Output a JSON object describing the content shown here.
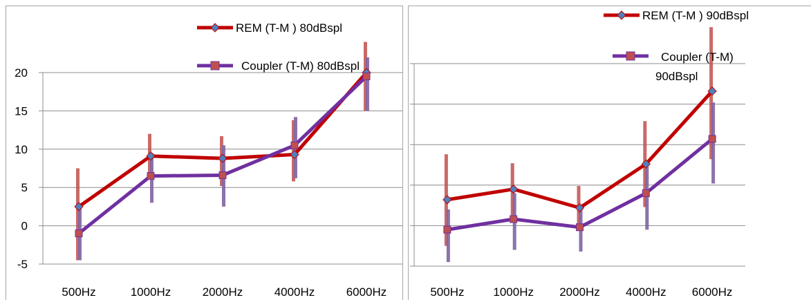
{
  "chart_data": [
    {
      "type": "line",
      "categories": [
        "500Hz",
        "1000Hz",
        "2000Hz",
        "4000Hz",
        "6000Hz"
      ],
      "ylim": [
        -5,
        20
      ],
      "yticks": [
        "20",
        "15",
        "10",
        "5",
        "0",
        "-5"
      ],
      "grid": true,
      "legend_position": "top-right",
      "series": [
        {
          "name": "REM (T-M )  80dBspl",
          "color": "#c00000",
          "marker": "diamond",
          "values": [
            2.5,
            9.1,
            8.8,
            9.3,
            20.0
          ],
          "error_low": [
            -4.5,
            6.0,
            5.2,
            5.8,
            15.0
          ],
          "error_high": [
            7.5,
            12.0,
            11.7,
            13.8,
            24.0
          ]
        },
        {
          "name": "Coupler (T-M) 80dBspl",
          "color": "#7030a0",
          "marker": "square",
          "values": [
            -1.0,
            6.5,
            6.6,
            10.5,
            19.5
          ],
          "error_low": [
            -4.5,
            3.0,
            2.5,
            6.2,
            15.0
          ],
          "error_high": [
            2.5,
            9.5,
            10.5,
            14.2,
            22.0
          ]
        }
      ]
    },
    {
      "type": "line",
      "categories": [
        "500Hz",
        "1000Hz",
        "2000Hz",
        "4000Hz",
        "6000Hz"
      ],
      "ylim": [
        -5,
        20
      ],
      "yticks": [],
      "grid": true,
      "legend_position": "top-right",
      "series": [
        {
          "name": "REM (T-M )  90dBspl",
          "color": "#c00000",
          "marker": "diamond",
          "values": [
            3.2,
            4.5,
            2.2,
            7.6,
            16.6
          ],
          "error_low": [
            -2.5,
            1.0,
            -0.5,
            2.3,
            8.2
          ],
          "error_high": [
            8.8,
            7.7,
            4.9,
            12.9,
            24.5
          ]
        },
        {
          "name": "Coupler (T-M)",
          "name_line2": "90dBspl",
          "color": "#7030a0",
          "marker": "square",
          "values": [
            -0.5,
            0.8,
            -0.2,
            4.0,
            10.7
          ],
          "error_low": [
            -4.5,
            -3.0,
            -3.2,
            -0.5,
            5.2
          ],
          "error_high": [
            2.0,
            4.0,
            2.5,
            7.3,
            15.2
          ]
        }
      ]
    }
  ]
}
